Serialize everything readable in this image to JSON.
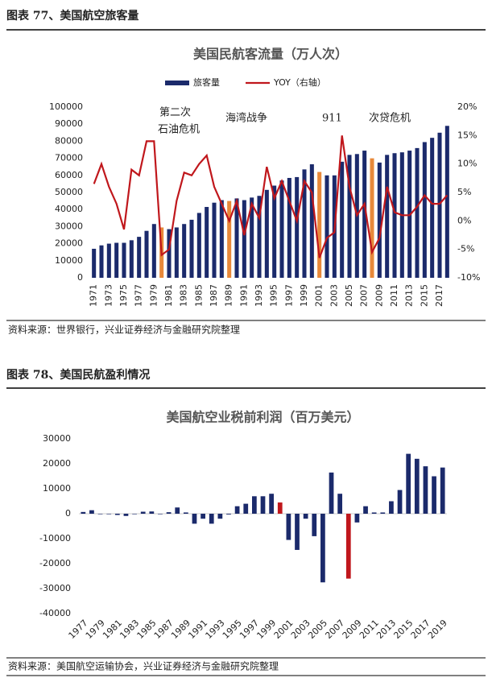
{
  "sections": [
    {
      "heading": "图表 77、美国航空旅客量",
      "source": "资料来源：世界银行，兴业证券经济与金融研究院整理"
    },
    {
      "heading": "图表 78、美国民航盈利情况",
      "source": "资料来源：美国航空运输协会，兴业证券经济与金融研究院整理"
    }
  ],
  "chart_data": [
    {
      "type": "bar-line",
      "title": "美国民航客流量（万人次）",
      "categories": [
        "1971",
        null,
        "1973",
        null,
        "1975",
        null,
        "1977",
        null,
        "1979",
        null,
        "1981",
        null,
        "1983",
        null,
        "1985",
        null,
        "1987",
        null,
        "1989",
        null,
        "1991",
        null,
        "1993",
        null,
        "1995",
        null,
        "1997",
        null,
        "1999",
        null,
        "2001",
        null,
        "2003",
        null,
        "2005",
        null,
        "2007",
        null,
        "2009",
        null,
        "2011",
        null,
        "2013",
        null,
        "2015",
        null,
        "2017",
        null
      ],
      "series": [
        {
          "name": "旅客量",
          "type": "bar",
          "color": "#1b2a6b",
          "colors": [
            "#1b2a6b",
            "#1b2a6b",
            "#1b2a6b",
            "#1b2a6b",
            "#1b2a6b",
            "#1b2a6b",
            "#1b2a6b",
            "#1b2a6b",
            "#1b2a6b",
            "#e8893a",
            "#1b2a6b",
            "#1b2a6b",
            "#1b2a6b",
            "#1b2a6b",
            "#1b2a6b",
            "#1b2a6b",
            "#1b2a6b",
            "#1b2a6b",
            "#e8893a",
            "#1b2a6b",
            "#1b2a6b",
            "#1b2a6b",
            "#1b2a6b",
            "#1b2a6b",
            "#1b2a6b",
            "#1b2a6b",
            "#1b2a6b",
            "#1b2a6b",
            "#1b2a6b",
            "#1b2a6b",
            "#e8893a",
            "#1b2a6b",
            "#1b2a6b",
            "#1b2a6b",
            "#1b2a6b",
            "#1b2a6b",
            "#1b2a6b",
            "#e8893a",
            "#1b2a6b",
            "#1b2a6b",
            "#1b2a6b",
            "#1b2a6b",
            "#1b2a6b",
            "#1b2a6b",
            "#1b2a6b",
            "#1b2a6b",
            "#1b2a6b",
            "#1b2a6b"
          ],
          "values": [
            17000,
            19000,
            20000,
            20500,
            20500,
            22000,
            24000,
            27500,
            31500,
            29500,
            28500,
            29500,
            31500,
            34000,
            38000,
            41500,
            44000,
            45500,
            45000,
            46500,
            45500,
            47000,
            48000,
            51500,
            54000,
            57000,
            58500,
            59000,
            63500,
            66500,
            62000,
            60000,
            60000,
            68000,
            72000,
            72500,
            74500,
            70000,
            67500,
            72000,
            73000,
            73500,
            74500,
            76000,
            79500,
            82000,
            85000,
            89000
          ]
        },
        {
          "name": "YOY（右轴）",
          "type": "line",
          "axis": "y2",
          "color": "#c0171c",
          "values": [
            6.5,
            10,
            6,
            3,
            -1.5,
            9,
            8,
            14,
            14,
            -6,
            -5,
            3.5,
            8.5,
            8,
            10,
            11.5,
            6,
            3,
            0,
            3.5,
            -2.5,
            3,
            0.5,
            9.5,
            4,
            7,
            3.5,
            0,
            7,
            5,
            -6.5,
            -3,
            -2,
            15,
            6,
            1,
            3,
            -5.5,
            -3,
            6,
            1.5,
            1,
            1,
            2.5,
            4.5,
            3,
            3,
            4.5
          ]
        }
      ],
      "ylim": [
        0,
        100000
      ],
      "yticks": [
        0,
        10000,
        20000,
        30000,
        40000,
        50000,
        60000,
        70000,
        80000,
        90000,
        100000
      ],
      "y2lim": [
        -10,
        20
      ],
      "y2ticks": [
        {
          "value": -10,
          "label": "-10%"
        },
        {
          "value": -5,
          "label": "-5%"
        },
        {
          "value": 0,
          "label": "0%"
        },
        {
          "value": 5,
          "label": "5%"
        },
        {
          "value": 10,
          "label": "10%"
        },
        {
          "value": 15,
          "label": "15%"
        },
        {
          "value": 20,
          "label": "20%"
        }
      ],
      "annotations": [
        "第二次",
        "石油危机",
        "海湾战争",
        "911",
        "次贷危机"
      ]
    },
    {
      "type": "bar",
      "title": "美国航空业税前利润（百万美元）",
      "categories": [
        "1977",
        null,
        "1979",
        null,
        "1981",
        null,
        "1983",
        null,
        "1985",
        null,
        "1987",
        null,
        "1989",
        null,
        "1991",
        null,
        "1993",
        null,
        "1995",
        null,
        "1997",
        null,
        "1999",
        null,
        "2001",
        null,
        "2003",
        null,
        "2005",
        null,
        "2007",
        null,
        "2009",
        null,
        "2011",
        null,
        "2013",
        null,
        "2015",
        null,
        "2017",
        null,
        "2019"
      ],
      "series": [
        {
          "type": "bar",
          "color": "#1b2a6b",
          "colors": [
            "#1b2a6b",
            "#1b2a6b",
            "#1b2a6b",
            "#1b2a6b",
            "#1b2a6b",
            "#1b2a6b",
            "#1b2a6b",
            "#1b2a6b",
            "#1b2a6b",
            "#1b2a6b",
            "#1b2a6b",
            "#1b2a6b",
            "#1b2a6b",
            "#1b2a6b",
            "#1b2a6b",
            "#1b2a6b",
            "#1b2a6b",
            "#1b2a6b",
            "#1b2a6b",
            "#1b2a6b",
            "#1b2a6b",
            "#1b2a6b",
            "#1b2a6b",
            "#c0171c",
            "#1b2a6b",
            "#1b2a6b",
            "#1b2a6b",
            "#1b2a6b",
            "#1b2a6b",
            "#1b2a6b",
            "#1b2a6b",
            "#c0171c",
            "#1b2a6b",
            "#1b2a6b",
            "#1b2a6b",
            "#1b2a6b",
            "#1b2a6b",
            "#1b2a6b",
            "#1b2a6b",
            "#1b2a6b",
            "#1b2a6b",
            "#1b2a6b",
            "#1b2a6b"
          ],
          "values": [
            700,
            1400,
            -200,
            -200,
            -500,
            -900,
            -200,
            800,
            900,
            -200,
            600,
            2500,
            500,
            -4000,
            -2000,
            -4000,
            -2000,
            -300,
            3000,
            4000,
            7000,
            7000,
            8000,
            4500,
            -10500,
            -14500,
            -2000,
            -9000,
            -27500,
            16500,
            8000,
            -26000,
            -3500,
            3000,
            500,
            500,
            5000,
            9500,
            24000,
            22000,
            19000,
            15000,
            18500
          ]
        }
      ],
      "ylim": [
        -40000,
        30000
      ],
      "yticks": [
        -40000,
        -30000,
        -20000,
        -10000,
        0,
        10000,
        20000,
        30000
      ]
    }
  ]
}
